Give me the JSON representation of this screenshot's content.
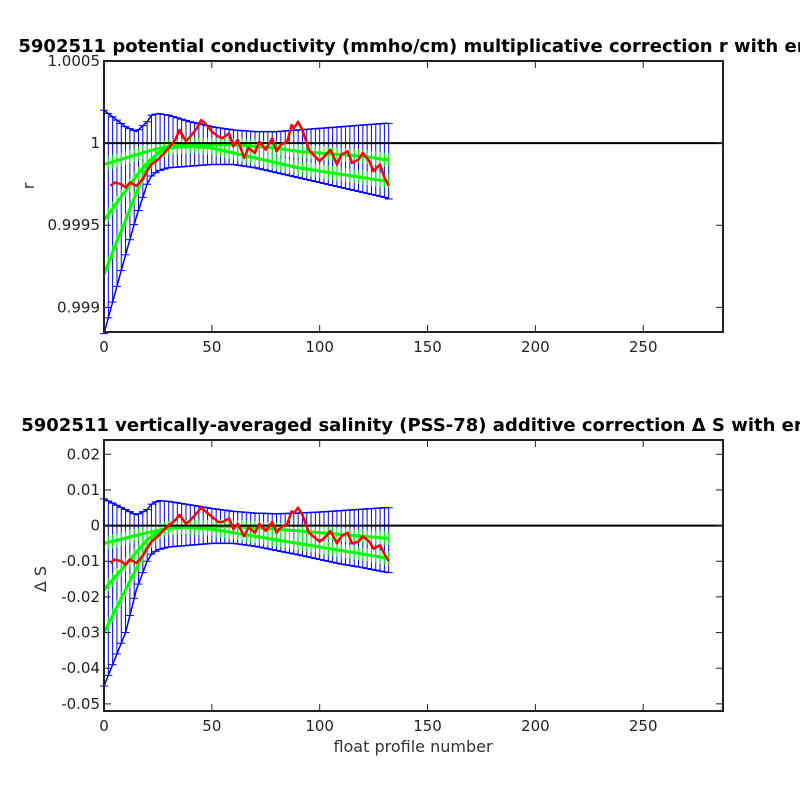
{
  "chart_data": [
    {
      "type": "line",
      "title": "5902511 potential conductivity (mmho/cm) multiplicative correction r with er",
      "xlabel": "",
      "ylabel": "r",
      "xlim": [
        0,
        287
      ],
      "ylim": [
        0.99885,
        1.0005
      ],
      "x_ticks": [
        "0",
        "50",
        "100",
        "150",
        "200",
        "250"
      ],
      "y_ticks": [
        "0.999",
        "0.9995",
        "1",
        "1.0005"
      ],
      "reference_line": 1,
      "grid": false,
      "colors": {
        "error_bars": "#0000ff",
        "correction_bands": "#00ff00",
        "profile_estimate": "#ff0000",
        "reference": "#000000"
      },
      "series": [
        {
          "role": "profile_estimate",
          "x": [
            3,
            5,
            8,
            10,
            12,
            15,
            18,
            20,
            22,
            25,
            28,
            30,
            33,
            35,
            38,
            40,
            43,
            45,
            47,
            50,
            53,
            55,
            58,
            60,
            62,
            65,
            67,
            70,
            72,
            75,
            78,
            80,
            82,
            85,
            87,
            88,
            90,
            92,
            95,
            97,
            100,
            103,
            105,
            108,
            110,
            113,
            115,
            118,
            120,
            123,
            125,
            128,
            130,
            132
          ],
          "y": [
            0.99974,
            0.99976,
            0.99975,
            0.99973,
            0.99976,
            0.99974,
            0.99978,
            0.99983,
            0.99987,
            0.9999,
            0.99994,
            0.99997,
            1.00002,
            1.00008,
            1.00001,
            1.00004,
            1.00009,
            1.00014,
            1.00012,
            1.00007,
            1.00004,
            1.00003,
            1.00006,
            0.99998,
            1.00002,
            0.99991,
            0.99997,
            0.99994,
            1.00001,
            0.99996,
            1.00003,
            0.99995,
            0.99999,
            1.00001,
            1.00011,
            1.00009,
            1.00013,
            1.00008,
            0.99996,
            0.99993,
            0.99989,
            0.99993,
            0.99996,
            0.99987,
            0.99993,
            0.99995,
            0.99988,
            0.9999,
            0.99994,
            0.99989,
            0.99983,
            0.99987,
            0.99979,
            0.99974
          ]
        },
        {
          "role": "correction_fit_1",
          "x": [
            0,
            10,
            20,
            30,
            40,
            50,
            60,
            70,
            80,
            90,
            100,
            110,
            120,
            130,
            132
          ],
          "y": [
            0.99987,
            0.99991,
            0.99995,
            0.99998,
            0.99999,
            0.99999,
            0.99999,
            0.99998,
            0.99997,
            0.99995,
            0.99994,
            0.99993,
            0.99992,
            0.9999,
            0.9999
          ]
        },
        {
          "role": "correction_fit_2",
          "x": [
            0,
            5,
            10,
            15,
            20,
            25,
            30,
            40,
            50,
            60,
            70,
            80,
            90,
            100,
            110,
            120,
            130,
            132
          ],
          "y": [
            0.99953,
            0.99962,
            0.99971,
            0.9998,
            0.99988,
            0.99994,
            0.99997,
            0.99998,
            0.99997,
            0.99994,
            0.99991,
            0.99988,
            0.99985,
            0.99983,
            0.99981,
            0.99979,
            0.99977,
            0.99977
          ]
        },
        {
          "role": "correction_fit_3",
          "x": [
            0,
            5,
            10,
            15,
            20,
            25,
            30
          ],
          "y": [
            0.9992,
            0.99937,
            0.99953,
            0.9997,
            0.99985,
            0.99994,
            0.99997
          ]
        },
        {
          "role": "error_envelope",
          "x": [
            0,
            10,
            15,
            20,
            22,
            25,
            30,
            40,
            50,
            60,
            70,
            80,
            90,
            100,
            110,
            120,
            130,
            132
          ],
          "upper": [
            1.0002,
            1.0001,
            1.00007,
            1.00013,
            1.00017,
            1.00018,
            1.00017,
            1.00013,
            1.0001,
            1.00008,
            1.00007,
            1.00007,
            1.00008,
            1.00009,
            1.0001,
            1.00011,
            1.00012,
            1.00012
          ],
          "lower": [
            0.99884,
            0.99932,
            0.99955,
            0.99975,
            0.9998,
            0.99983,
            0.99985,
            0.99986,
            0.99987,
            0.99987,
            0.99985,
            0.99982,
            0.99979,
            0.99976,
            0.99973,
            0.9997,
            0.99967,
            0.99966
          ]
        }
      ]
    },
    {
      "type": "line",
      "title": "5902511 vertically-averaged salinity (PSS-78) additive correction Δ S with er",
      "xlabel": "float profile number",
      "ylabel": "Δ S",
      "xlim": [
        0,
        287
      ],
      "ylim": [
        -0.052,
        0.024
      ],
      "x_ticks": [
        "0",
        "50",
        "100",
        "150",
        "200",
        "250"
      ],
      "y_ticks": [
        "0.02",
        "0.01",
        "0",
        "-0.01",
        "-0.02",
        "-0.03",
        "-0.04",
        "-0.05"
      ],
      "reference_line": 0,
      "grid": false,
      "colors": {
        "error_bars": "#0000ff",
        "correction_bands": "#00ff00",
        "profile_estimate": "#ff0000",
        "reference": "#000000"
      },
      "series": [
        {
          "role": "profile_estimate",
          "x": [
            3,
            5,
            8,
            10,
            12,
            15,
            18,
            20,
            22,
            25,
            28,
            30,
            33,
            35,
            38,
            40,
            43,
            45,
            47,
            50,
            53,
            55,
            58,
            60,
            62,
            65,
            67,
            70,
            72,
            75,
            78,
            80,
            82,
            85,
            87,
            88,
            90,
            92,
            95,
            97,
            100,
            103,
            105,
            108,
            110,
            113,
            115,
            118,
            120,
            123,
            125,
            128,
            130,
            132
          ],
          "y": [
            -0.0105,
            -0.0095,
            -0.01,
            -0.011,
            -0.0095,
            -0.0105,
            -0.0085,
            -0.0065,
            -0.0045,
            -0.003,
            -0.001,
            0.0,
            0.0015,
            0.003,
            0.0005,
            0.0015,
            0.0035,
            0.005,
            0.004,
            0.0025,
            0.001,
            0.001,
            0.002,
            -0.001,
            0.0005,
            -0.003,
            -0.0005,
            -0.002,
            0.0005,
            -0.0015,
            0.001,
            -0.002,
            -0.0005,
            0.0005,
            0.004,
            0.0035,
            0.005,
            0.003,
            -0.002,
            -0.003,
            -0.0045,
            -0.003,
            -0.0015,
            -0.005,
            -0.003,
            -0.002,
            -0.005,
            -0.0045,
            -0.003,
            -0.0045,
            -0.0065,
            -0.0055,
            -0.008,
            -0.01
          ]
        },
        {
          "role": "correction_fit_1",
          "x": [
            0,
            10,
            20,
            30,
            40,
            50,
            60,
            70,
            80,
            90,
            100,
            110,
            120,
            130,
            132
          ],
          "y": [
            -0.005,
            -0.0035,
            -0.002,
            -0.0008,
            -0.0003,
            -0.0002,
            -0.0003,
            -0.0006,
            -0.001,
            -0.0015,
            -0.002,
            -0.0025,
            -0.003,
            -0.0035,
            -0.0036
          ]
        },
        {
          "role": "correction_fit_2",
          "x": [
            0,
            5,
            10,
            15,
            20,
            25,
            30,
            40,
            50,
            60,
            70,
            80,
            90,
            100,
            110,
            120,
            130,
            132
          ],
          "y": [
            -0.018,
            -0.0145,
            -0.011,
            -0.0075,
            -0.004,
            -0.0015,
            -0.0005,
            -0.0005,
            -0.001,
            -0.002,
            -0.003,
            -0.004,
            -0.005,
            -0.006,
            -0.007,
            -0.008,
            -0.009,
            -0.0092
          ]
        },
        {
          "role": "correction_fit_3",
          "x": [
            0,
            5,
            10,
            15,
            20,
            25,
            30
          ],
          "y": [
            -0.03,
            -0.024,
            -0.018,
            -0.012,
            -0.006,
            -0.002,
            -0.0005
          ]
        },
        {
          "role": "error_envelope",
          "x": [
            0,
            10,
            15,
            20,
            22,
            25,
            30,
            40,
            50,
            60,
            70,
            80,
            90,
            100,
            110,
            120,
            130,
            132
          ],
          "upper": [
            0.0075,
            0.0045,
            0.003,
            0.0045,
            0.006,
            0.007,
            0.0068,
            0.0058,
            0.0048,
            0.004,
            0.0035,
            0.0033,
            0.0035,
            0.0038,
            0.0042,
            0.0046,
            0.005,
            0.005
          ],
          "lower": [
            -0.045,
            -0.03,
            -0.018,
            -0.01,
            -0.008,
            -0.0068,
            -0.006,
            -0.0055,
            -0.005,
            -0.005,
            -0.0058,
            -0.007,
            -0.0082,
            -0.0095,
            -0.0108,
            -0.0118,
            -0.013,
            -0.0132
          ]
        }
      ]
    }
  ]
}
